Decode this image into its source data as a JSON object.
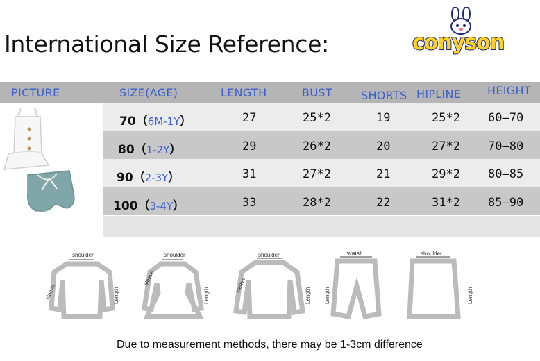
{
  "title": "International Size Reference:",
  "logo": {
    "text": "conyson"
  },
  "headers": [
    "PICTURE",
    "SIZE(AGE)",
    "LENGTH",
    "BUST",
    "SHORTS",
    "HIPLINE",
    "HEIGHT"
  ],
  "rows": [
    {
      "size": "70（",
      "age": "6M-1Y",
      "close": "）",
      "length": "27",
      "bust": "25*2",
      "shorts": "19",
      "hipline": "25*2",
      "height": "60—70"
    },
    {
      "size": "80（",
      "age": "1-2Y",
      "close": "）",
      "length": "29",
      "bust": "26*2",
      "shorts": "20",
      "hipline": "27*2",
      "height": "70—80"
    },
    {
      "size": "90（",
      "age": "2-3Y",
      "close": "）",
      "length": "31",
      "bust": "27*2",
      "shorts": "21",
      "hipline": "29*2",
      "height": "80—85"
    },
    {
      "size": "100（",
      "age": "3-4Y",
      "close": "）",
      "length": "33",
      "bust": "28*2",
      "shorts": "22",
      "hipline": "31*2",
      "height": "85—90"
    }
  ],
  "diagrams": {
    "shoulder": "shoulder",
    "sleeve": "sleeve",
    "length": "Length",
    "waist": "waist"
  },
  "note": "Due to measurement methods, there may be 1-3cm difference",
  "colors": {
    "header_bg": "#b5b5b5",
    "header_text": "#3a5fcd",
    "logo_yellow": "#ffd21f",
    "logo_blue": "#1f2a7a"
  }
}
